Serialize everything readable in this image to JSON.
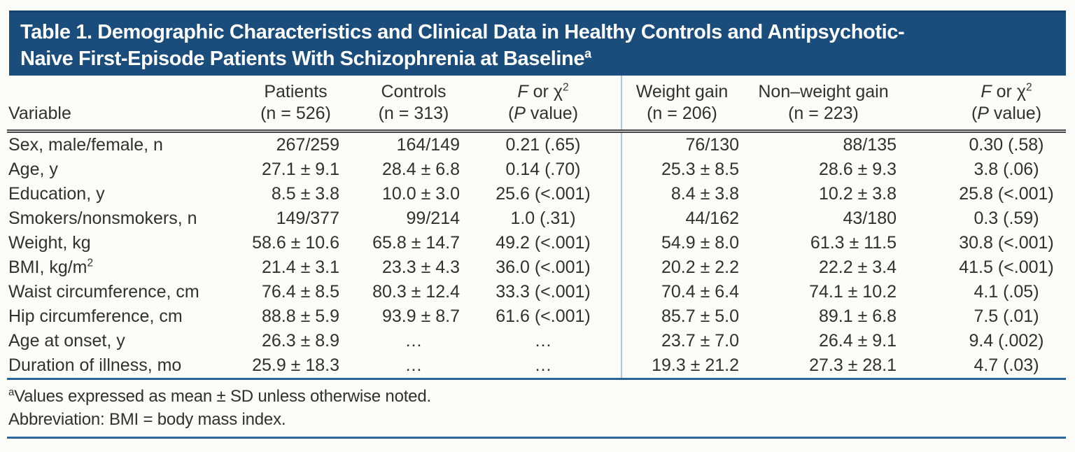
{
  "title": {
    "line1": "Table 1. Demographic Characteristics and Clinical Data in Healthy Controls and Antipsychotic-",
    "line2": "Naive First-Episode Patients With Schizophrenia at Baseline",
    "superscript": "a"
  },
  "header": {
    "variable": "Variable",
    "patients_line1": "Patients",
    "patients_line2": "(n = 526)",
    "controls_line1": "Controls",
    "controls_line2": "(n = 313)",
    "fchi": {
      "f": "F",
      "rest": " or χ",
      "sup": "2",
      "p_open": "(",
      "p": "P",
      "p_rest": " value)"
    },
    "weight_line1": "Weight gain",
    "weight_line2": "(n = 206)",
    "nonweight_line1": "Non–weight gain",
    "nonweight_line2": "(n = 223)"
  },
  "table": {
    "rows": [
      {
        "label": "Sex, male/female, n",
        "cells": [
          "267/259",
          "164/149",
          "0.21 (.65)",
          "76/130",
          "88/135",
          "0.30 (.58)"
        ]
      },
      {
        "label": "Age, y",
        "cells": [
          "27.1 ± 9.1",
          "28.4 ± 6.8",
          "0.14 (.70)",
          "25.3 ± 8.5",
          "28.6 ± 9.3",
          "3.8 (.06)"
        ]
      },
      {
        "label": "Education, y",
        "cells": [
          "8.5 ± 3.8",
          "10.0 ± 3.0",
          "25.6 (<.001)",
          "8.4 ± 3.8",
          "10.2 ± 3.8",
          "25.8 (<.001)"
        ]
      },
      {
        "label": "Smokers/nonsmokers, n",
        "cells": [
          "149/377",
          "99/214",
          "1.0 (.31)",
          "44/162",
          "43/180",
          "0.3 (.59)"
        ]
      },
      {
        "label": "Weight, kg",
        "cells": [
          "58.6 ± 10.6",
          "65.8 ± 14.7",
          "49.2 (<.001)",
          "54.9 ± 8.0",
          "61.3 ± 11.5",
          "30.8 (<.001)"
        ]
      },
      {
        "label": "BMI, kg/m",
        "label_sup": "2",
        "cells": [
          "21.4 ± 3.1",
          "23.3 ± 4.3",
          "36.0 (<.001)",
          "20.2 ± 2.2",
          "22.2 ± 3.4",
          "41.5 (<.001)"
        ]
      },
      {
        "label": "Waist circumference, cm",
        "cells": [
          "76.4 ± 8.5",
          "80.3 ± 12.4",
          "33.3 (<.001)",
          "70.4 ± 6.4",
          "74.1 ± 10.2",
          "4.1 (.05)"
        ]
      },
      {
        "label": "Hip circumference, cm",
        "cells": [
          "88.8 ± 5.9",
          "93.9 ± 8.7",
          "61.6 (<.001)",
          "85.7 ± 5.0",
          "89.1 ± 6.8",
          "7.5 (.01)"
        ]
      },
      {
        "label": "Age at onset, y",
        "cells": [
          "26.3 ± 8.9",
          "…",
          "…",
          "23.7 ± 7.0",
          "26.4 ± 9.1",
          "9.4 (.002)"
        ]
      },
      {
        "label": "Duration of illness, mo",
        "cells": [
          "25.9 ± 18.3",
          "…",
          "…",
          "19.3 ± 21.2",
          "27.3 ± 28.1",
          "4.7 (.03)"
        ]
      }
    ]
  },
  "footnotes": {
    "note1_sup": "a",
    "note1": "Values expressed as mean ± SD unless otherwise noted.",
    "note2": "Abbreviation: BMI = body mass index."
  },
  "colors": {
    "band_blue": "#1b4d7c",
    "band_top_edge": "#14416e",
    "rule_blue": "#2a6499",
    "divider_light_blue": "#aac8e3",
    "header_rule_dark": "#474747",
    "text": "#34302c",
    "title_text": "#ffffff"
  }
}
